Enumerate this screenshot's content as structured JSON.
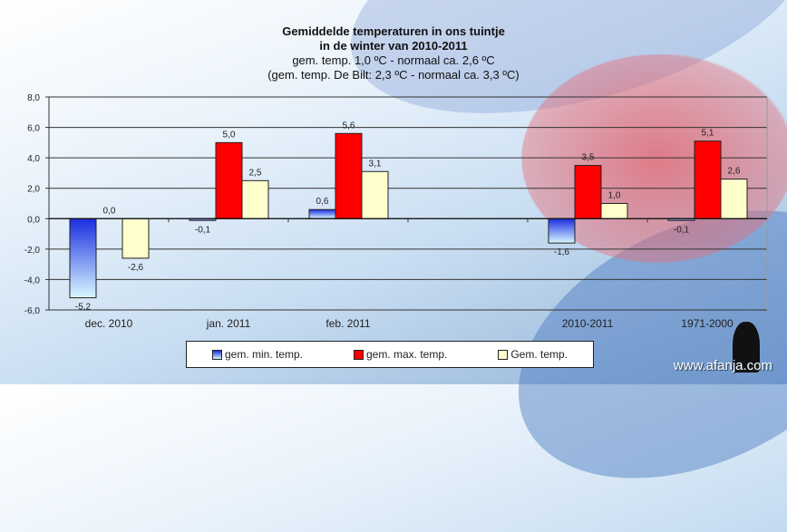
{
  "chart_data": {
    "type": "bar",
    "title": "Gemiddelde temperaturen in ons tuintje",
    "title_line2": "in de winter van 2010-2011",
    "subtitle": "gem. temp. 1,0 ºC - normaal ca. 2,6 ºC",
    "subtitle2": "(gem. temp. De Bilt: 2,3 ºC - normaal ca. 3,3 ºC)",
    "categories": [
      "dec. 2010",
      "jan. 2011",
      "feb. 2011",
      "",
      "2010-2011",
      "1971-2000"
    ],
    "series": [
      {
        "name": "gem. min. temp.",
        "color": "#1a2de0",
        "values": [
          -5.2,
          -0.1,
          0.6,
          null,
          -1.6,
          -0.1
        ],
        "labels": [
          "-5,2",
          "-0,1",
          "0,6",
          "",
          "-1,6",
          "-0,1"
        ]
      },
      {
        "name": "gem. max. temp.",
        "color": "#ff0000",
        "values": [
          0.0,
          5.0,
          5.6,
          null,
          3.5,
          5.1
        ],
        "labels": [
          "0,0",
          "5,0",
          "5,6",
          "",
          "3,5",
          "5,1"
        ]
      },
      {
        "name": "Gem. temp.",
        "color": "#ffffcc",
        "values": [
          -2.6,
          2.5,
          3.1,
          null,
          1.0,
          2.6
        ],
        "labels": [
          "-2,6",
          "2,5",
          "3,1",
          "",
          "1,0",
          "2,6"
        ]
      }
    ],
    "yticks": [
      "8,0",
      "6,0",
      "4,0",
      "2,0",
      "0,0",
      "-2,0",
      "-4,0",
      "-6,0"
    ],
    "ylim": [
      -6,
      8
    ],
    "grid": true,
    "legend_position": "bottom"
  },
  "watermark": "www.afanja.com"
}
